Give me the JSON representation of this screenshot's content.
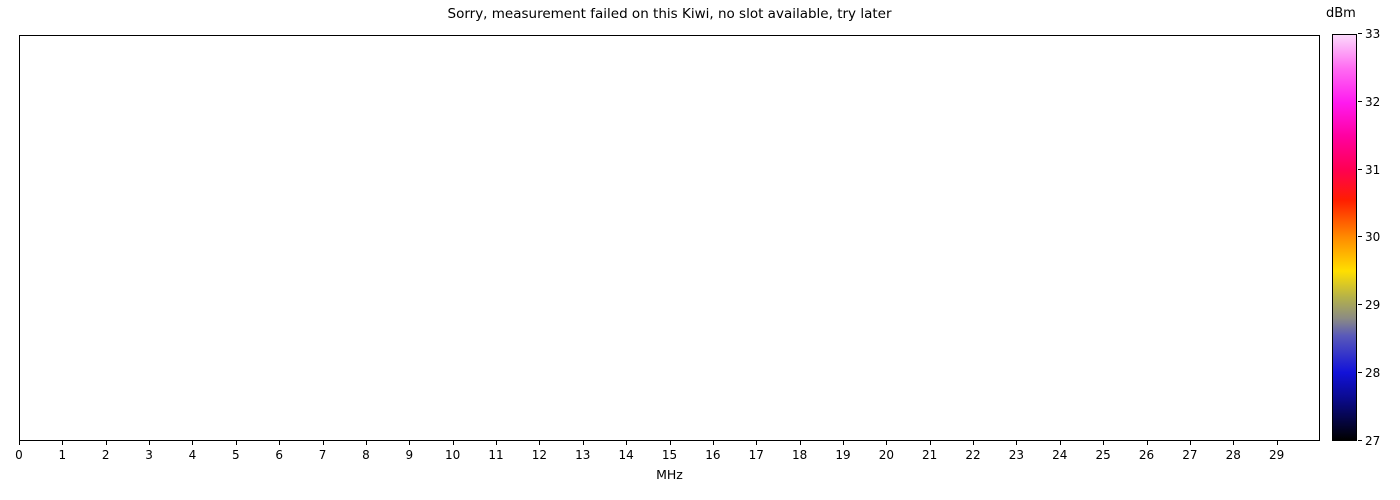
{
  "chart_data": {
    "type": "heatmap",
    "title": "Sorry, measurement failed on this Kiwi, no slot available, try later",
    "xlabel": "MHz",
    "xlim": [
      0,
      30
    ],
    "x_ticks": [
      "0",
      "1",
      "2",
      "3",
      "4",
      "5",
      "6",
      "7",
      "8",
      "9",
      "10",
      "11",
      "12",
      "13",
      "14",
      "15",
      "16",
      "17",
      "18",
      "19",
      "20",
      "21",
      "22",
      "23",
      "24",
      "25",
      "26",
      "27",
      "28",
      "29"
    ],
    "grid": false,
    "plot_area_empty": true,
    "values": [],
    "colorbar": {
      "label": "dBm",
      "min": 27,
      "max": 33,
      "ticks": [
        "27",
        "28",
        "29",
        "30",
        "31",
        "32",
        "33"
      ],
      "gradient_stops": [
        {
          "pos": 0,
          "color": "#000000"
        },
        {
          "pos": 10,
          "color": "#0a0a8a"
        },
        {
          "pos": 16.7,
          "color": "#1212d9"
        },
        {
          "pos": 25.8,
          "color": "#5a5ab9"
        },
        {
          "pos": 30,
          "color": "#8b8b84"
        },
        {
          "pos": 35,
          "color": "#b2b04c"
        },
        {
          "pos": 41.7,
          "color": "#ffdf00"
        },
        {
          "pos": 50,
          "color": "#ff8c00"
        },
        {
          "pos": 59.2,
          "color": "#ff1e00"
        },
        {
          "pos": 66.7,
          "color": "#ff0051"
        },
        {
          "pos": 75,
          "color": "#ff00a0"
        },
        {
          "pos": 83.3,
          "color": "#ff1aef"
        },
        {
          "pos": 91.7,
          "color": "#ff6bf2"
        },
        {
          "pos": 100,
          "color": "#fbd9fb"
        }
      ]
    }
  }
}
